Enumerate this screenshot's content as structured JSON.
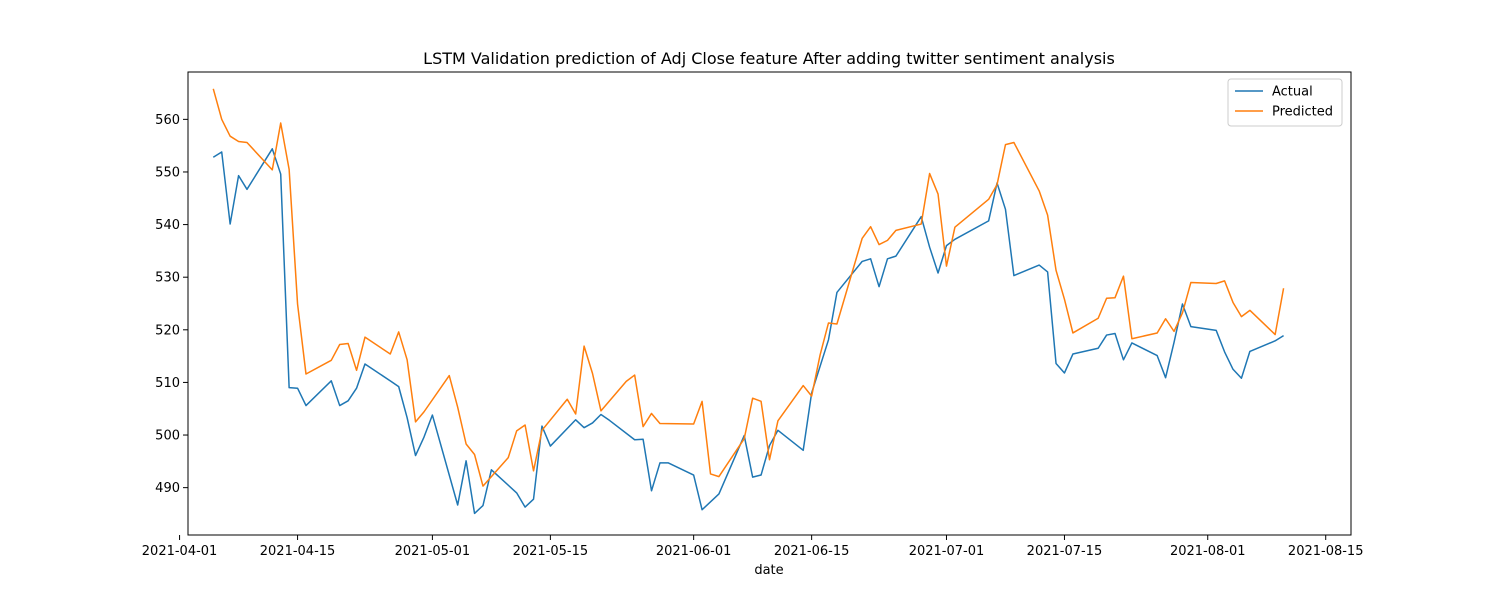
{
  "chart_data": {
    "type": "line",
    "title": "LSTM Validation prediction of Adj Close feature After adding twitter sentiment analysis",
    "xlabel": "date",
    "ylabel": "",
    "xlim": [
      "2021-04-02",
      "2021-08-18"
    ],
    "ylim": [
      481,
      569
    ],
    "xticks": [
      "2021-04-01",
      "2021-04-15",
      "2021-05-01",
      "2021-05-15",
      "2021-06-01",
      "2021-06-15",
      "2021-07-01",
      "2021-07-15",
      "2021-08-01",
      "2021-08-15"
    ],
    "yticks": [
      490,
      500,
      510,
      520,
      530,
      540,
      550,
      560
    ],
    "legend_position": "top-right",
    "grid": false,
    "series": [
      {
        "name": "Actual",
        "color": "#1f77b4",
        "points": [
          [
            "2021-04-05",
            552.8
          ],
          [
            "2021-04-06",
            553.8
          ],
          [
            "2021-04-07",
            540.1
          ],
          [
            "2021-04-08",
            549.3
          ],
          [
            "2021-04-09",
            546.7
          ],
          [
            "2021-04-12",
            554.4
          ],
          [
            "2021-04-13",
            549.6
          ],
          [
            "2021-04-14",
            509.0
          ],
          [
            "2021-04-15",
            508.9
          ],
          [
            "2021-04-16",
            505.6
          ],
          [
            "2021-04-19",
            510.3
          ],
          [
            "2021-04-20",
            505.6
          ],
          [
            "2021-04-21",
            506.5
          ],
          [
            "2021-04-22",
            508.9
          ],
          [
            "2021-04-23",
            513.5
          ],
          [
            "2021-04-26",
            510.3
          ],
          [
            "2021-04-27",
            509.2
          ],
          [
            "2021-04-28",
            503.3
          ],
          [
            "2021-04-29",
            496.1
          ],
          [
            "2021-04-30",
            499.6
          ],
          [
            "2021-05-01",
            503.8
          ],
          [
            "2021-05-04",
            486.7
          ],
          [
            "2021-05-05",
            495.1
          ],
          [
            "2021-05-06",
            485.1
          ],
          [
            "2021-05-07",
            486.6
          ],
          [
            "2021-05-08",
            493.4
          ],
          [
            "2021-05-11",
            489.0
          ],
          [
            "2021-05-12",
            486.3
          ],
          [
            "2021-05-13",
            487.8
          ],
          [
            "2021-05-14",
            501.7
          ],
          [
            "2021-05-15",
            497.9
          ],
          [
            "2021-05-18",
            502.9
          ],
          [
            "2021-05-19",
            501.4
          ],
          [
            "2021-05-20",
            502.3
          ],
          [
            "2021-05-21",
            503.9
          ],
          [
            "2021-05-22",
            502.8
          ],
          [
            "2021-05-25",
            499.1
          ],
          [
            "2021-05-26",
            499.2
          ],
          [
            "2021-05-27",
            489.4
          ],
          [
            "2021-05-28",
            494.7
          ],
          [
            "2021-05-29",
            494.7
          ],
          [
            "2021-06-01",
            492.4
          ],
          [
            "2021-06-02",
            485.8
          ],
          [
            "2021-06-04",
            488.8
          ],
          [
            "2021-06-07",
            499.9
          ],
          [
            "2021-06-08",
            492.0
          ],
          [
            "2021-06-09",
            492.4
          ],
          [
            "2021-06-10",
            498.0
          ],
          [
            "2021-06-11",
            500.9
          ],
          [
            "2021-06-14",
            497.1
          ],
          [
            "2021-06-15",
            508.0
          ],
          [
            "2021-06-17",
            518.1
          ],
          [
            "2021-06-18",
            527.1
          ],
          [
            "2021-06-21",
            533.0
          ],
          [
            "2021-06-22",
            533.5
          ],
          [
            "2021-06-23",
            528.2
          ],
          [
            "2021-06-24",
            533.5
          ],
          [
            "2021-06-25",
            534.0
          ],
          [
            "2021-06-28",
            541.5
          ],
          [
            "2021-06-29",
            535.7
          ],
          [
            "2021-06-30",
            530.8
          ],
          [
            "2021-07-01",
            536.0
          ],
          [
            "2021-07-02",
            537.2
          ],
          [
            "2021-07-06",
            540.7
          ],
          [
            "2021-07-07",
            547.9
          ],
          [
            "2021-07-08",
            542.9
          ],
          [
            "2021-07-09",
            530.3
          ],
          [
            "2021-07-12",
            532.3
          ],
          [
            "2021-07-13",
            531.0
          ],
          [
            "2021-07-14",
            513.6
          ],
          [
            "2021-07-15",
            511.8
          ],
          [
            "2021-07-16",
            515.4
          ],
          [
            "2021-07-19",
            516.5
          ],
          [
            "2021-07-20",
            519.0
          ],
          [
            "2021-07-21",
            519.3
          ],
          [
            "2021-07-22",
            514.3
          ],
          [
            "2021-07-23",
            517.5
          ],
          [
            "2021-07-26",
            515.1
          ],
          [
            "2021-07-27",
            510.9
          ],
          [
            "2021-07-28",
            517.6
          ],
          [
            "2021-07-29",
            524.9
          ],
          [
            "2021-07-30",
            520.6
          ],
          [
            "2021-08-02",
            519.9
          ],
          [
            "2021-08-03",
            515.8
          ],
          [
            "2021-08-04",
            512.5
          ],
          [
            "2021-08-05",
            510.8
          ],
          [
            "2021-08-06",
            515.9
          ],
          [
            "2021-08-09",
            517.9
          ],
          [
            "2021-08-10",
            518.9
          ]
        ]
      },
      {
        "name": "Predicted",
        "color": "#ff7f0e",
        "points": [
          [
            "2021-04-05",
            565.8
          ],
          [
            "2021-04-06",
            560.0
          ],
          [
            "2021-04-07",
            556.8
          ],
          [
            "2021-04-08",
            555.8
          ],
          [
            "2021-04-09",
            555.6
          ],
          [
            "2021-04-12",
            550.4
          ],
          [
            "2021-04-13",
            559.3
          ],
          [
            "2021-04-14",
            550.5
          ],
          [
            "2021-04-15",
            524.9
          ],
          [
            "2021-04-16",
            511.6
          ],
          [
            "2021-04-19",
            514.2
          ],
          [
            "2021-04-20",
            517.2
          ],
          [
            "2021-04-21",
            517.4
          ],
          [
            "2021-04-22",
            512.3
          ],
          [
            "2021-04-23",
            518.6
          ],
          [
            "2021-04-26",
            515.4
          ],
          [
            "2021-04-27",
            519.6
          ],
          [
            "2021-04-28",
            514.3
          ],
          [
            "2021-04-29",
            502.5
          ],
          [
            "2021-04-30",
            504.4
          ],
          [
            "2021-05-03",
            511.3
          ],
          [
            "2021-05-04",
            505.3
          ],
          [
            "2021-05-05",
            498.3
          ],
          [
            "2021-05-06",
            496.3
          ],
          [
            "2021-05-07",
            490.3
          ],
          [
            "2021-05-10",
            495.7
          ],
          [
            "2021-05-11",
            500.8
          ],
          [
            "2021-05-12",
            501.9
          ],
          [
            "2021-05-13",
            493.2
          ],
          [
            "2021-05-14",
            500.9
          ],
          [
            "2021-05-17",
            506.8
          ],
          [
            "2021-05-18",
            504.0
          ],
          [
            "2021-05-19",
            516.9
          ],
          [
            "2021-05-20",
            511.7
          ],
          [
            "2021-05-21",
            504.6
          ],
          [
            "2021-05-24",
            510.2
          ],
          [
            "2021-05-25",
            511.4
          ],
          [
            "2021-05-26",
            501.6
          ],
          [
            "2021-05-27",
            504.1
          ],
          [
            "2021-05-28",
            502.2
          ],
          [
            "2021-06-01",
            502.1
          ],
          [
            "2021-06-02",
            506.4
          ],
          [
            "2021-06-03",
            492.6
          ],
          [
            "2021-06-04",
            492.1
          ],
          [
            "2021-06-07",
            499.3
          ],
          [
            "2021-06-08",
            507.0
          ],
          [
            "2021-06-09",
            506.4
          ],
          [
            "2021-06-10",
            495.3
          ],
          [
            "2021-06-11",
            502.7
          ],
          [
            "2021-06-14",
            509.4
          ],
          [
            "2021-06-15",
            507.4
          ],
          [
            "2021-06-16",
            515.2
          ],
          [
            "2021-06-17",
            521.3
          ],
          [
            "2021-06-18",
            521.1
          ],
          [
            "2021-06-21",
            537.4
          ],
          [
            "2021-06-22",
            539.6
          ],
          [
            "2021-06-23",
            536.2
          ],
          [
            "2021-06-24",
            537.0
          ],
          [
            "2021-06-25",
            538.9
          ],
          [
            "2021-06-28",
            540.1
          ],
          [
            "2021-06-29",
            549.7
          ],
          [
            "2021-06-30",
            545.8
          ],
          [
            "2021-07-01",
            532.1
          ],
          [
            "2021-07-02",
            539.5
          ],
          [
            "2021-07-06",
            544.8
          ],
          [
            "2021-07-07",
            547.6
          ],
          [
            "2021-07-08",
            555.2
          ],
          [
            "2021-07-09",
            555.6
          ],
          [
            "2021-07-12",
            546.4
          ],
          [
            "2021-07-13",
            541.8
          ],
          [
            "2021-07-14",
            531.3
          ],
          [
            "2021-07-15",
            525.8
          ],
          [
            "2021-07-16",
            519.4
          ],
          [
            "2021-07-19",
            522.2
          ],
          [
            "2021-07-20",
            526.0
          ],
          [
            "2021-07-21",
            526.1
          ],
          [
            "2021-07-22",
            530.2
          ],
          [
            "2021-07-23",
            518.3
          ],
          [
            "2021-07-26",
            519.4
          ],
          [
            "2021-07-27",
            522.1
          ],
          [
            "2021-07-28",
            519.7
          ],
          [
            "2021-07-29",
            523.2
          ],
          [
            "2021-07-30",
            529.0
          ],
          [
            "2021-08-02",
            528.8
          ],
          [
            "2021-08-03",
            529.3
          ],
          [
            "2021-08-04",
            525.2
          ],
          [
            "2021-08-05",
            522.5
          ],
          [
            "2021-08-06",
            523.7
          ],
          [
            "2021-08-09",
            519.1
          ],
          [
            "2021-08-10",
            527.9
          ]
        ]
      }
    ]
  }
}
